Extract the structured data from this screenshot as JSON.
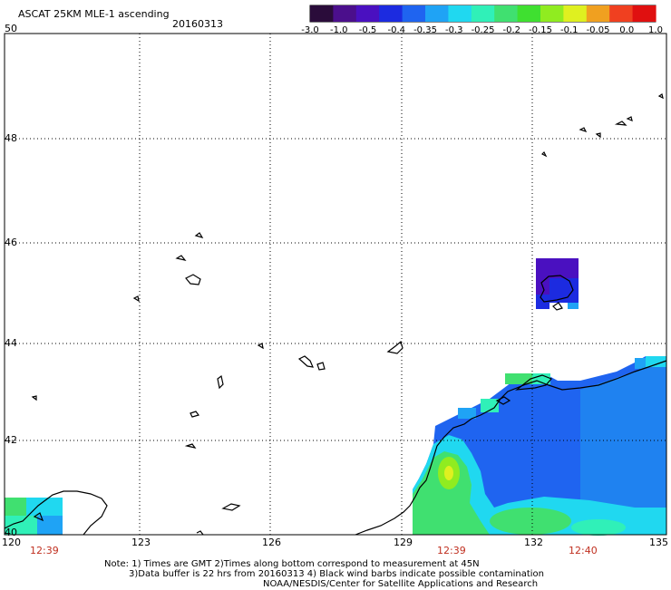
{
  "title": "ASCAT 25KM MLE-1 ascending",
  "date": "20160313",
  "colorbar": {
    "colors": [
      "#2a0c3a",
      "#4b0f8c",
      "#4a10c0",
      "#1c2be0",
      "#1f64f0",
      "#1fa3f5",
      "#20d8f0",
      "#30f0b8",
      "#40e070",
      "#3fe030",
      "#90ec20",
      "#dff020",
      "#f0a020",
      "#f04020",
      "#e01010"
    ],
    "labels": [
      "-3.0",
      "-1.0",
      "-0.5",
      "-0.4",
      "-0.35",
      "-0.3",
      "-0.25",
      "-0.2",
      "-0.15",
      "-0.1",
      "-0.05",
      "0.0",
      "1.0"
    ]
  },
  "lat_labels": [
    "50",
    "48",
    "46",
    "44",
    "42",
    "40"
  ],
  "lon_labels": [
    "120",
    "123",
    "126",
    "129",
    "132",
    "135"
  ],
  "time_labels": [
    "12:39",
    "12:39",
    "12:40"
  ],
  "note": {
    "line1": "Note: 1) Times are GMT 2)Times along bottom correspond to measurement at 45N",
    "line2": "3)Data buffer is 22 hrs from 20160313 4) Black wind barbs indicate possible contamination",
    "line3": "NOAA/NESDIS/Center for Satellite Applications and Research"
  }
}
